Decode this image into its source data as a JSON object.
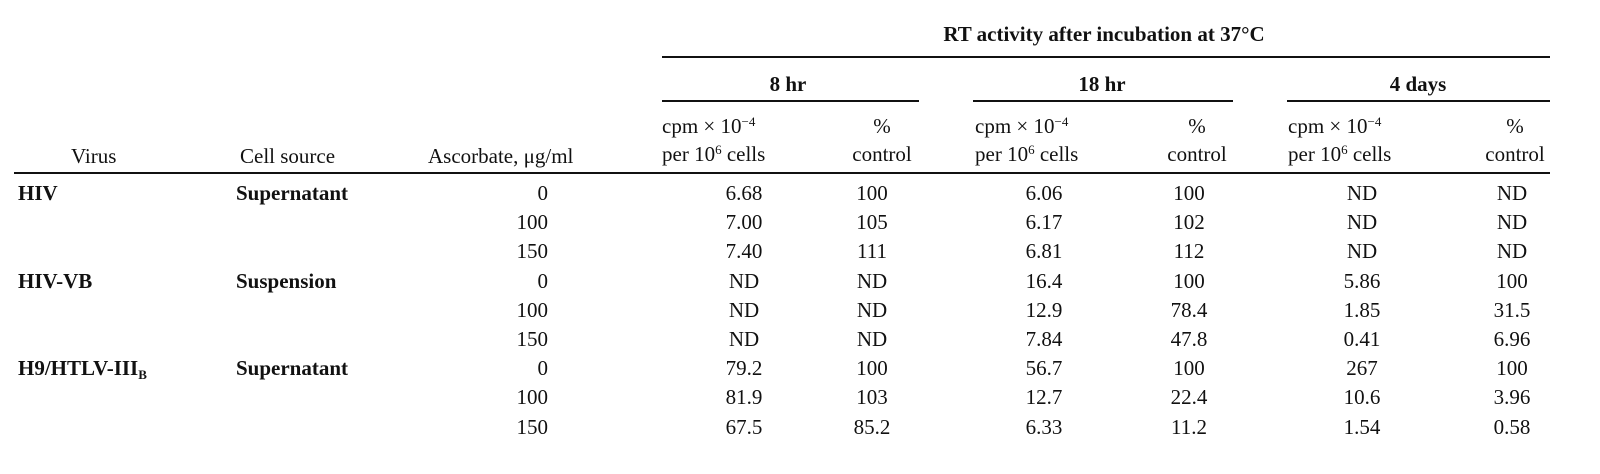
{
  "header": {
    "span_title": "RT activity after incubation at 37°C",
    "groups": [
      "8 hr",
      "18 hr",
      "4 days"
    ],
    "col_virus": "Virus",
    "col_cell_source": "Cell source",
    "col_ascorbate": "Ascorbate, μg/ml",
    "cpm_line1_prefix": "cpm × 10",
    "cpm_line1_exp": "−4",
    "cpm_line2_prefix": "per 10",
    "cpm_line2_exp": "6",
    "cpm_line2_suffix": " cells",
    "pct_line1": "%",
    "pct_line2": "control"
  },
  "rows": [
    {
      "virus": "HIV",
      "virus_sub": "",
      "cell": "Supernatant",
      "asc": "0",
      "c8": "6.68",
      "p8": "100",
      "c18": "6.06",
      "p18": "100",
      "c4": "ND",
      "p4": "ND"
    },
    {
      "virus": "",
      "virus_sub": "",
      "cell": "",
      "asc": "100",
      "c8": "7.00",
      "p8": "105",
      "c18": "6.17",
      "p18": "102",
      "c4": "ND",
      "p4": "ND"
    },
    {
      "virus": "",
      "virus_sub": "",
      "cell": "",
      "asc": "150",
      "c8": "7.40",
      "p8": "111",
      "c18": "6.81",
      "p18": "112",
      "c4": "ND",
      "p4": "ND"
    },
    {
      "virus": "HIV-VB",
      "virus_sub": "",
      "cell": "Suspension",
      "asc": "0",
      "c8": "ND",
      "p8": "ND",
      "c18": "16.4",
      "p18": "100",
      "c4": "5.86",
      "p4": "100"
    },
    {
      "virus": "",
      "virus_sub": "",
      "cell": "",
      "asc": "100",
      "c8": "ND",
      "p8": "ND",
      "c18": "12.9",
      "p18": "78.4",
      "c4": "1.85",
      "p4": "31.5"
    },
    {
      "virus": "",
      "virus_sub": "",
      "cell": "",
      "asc": "150",
      "c8": "ND",
      "p8": "ND",
      "c18": "7.84",
      "p18": "47.8",
      "c4": "0.41",
      "p4": "6.96"
    },
    {
      "virus": "H9/HTLV-III",
      "virus_sub": "B",
      "cell": "Supernatant",
      "asc": "0",
      "c8": "79.2",
      "p8": "100",
      "c18": "56.7",
      "p18": "100",
      "c4": "267",
      "p4": "100"
    },
    {
      "virus": "",
      "virus_sub": "",
      "cell": "",
      "asc": "100",
      "c8": "81.9",
      "p8": "103",
      "c18": "12.7",
      "p18": "22.4",
      "c4": "10.6",
      "p4": "3.96"
    },
    {
      "virus": "",
      "virus_sub": "",
      "cell": "",
      "asc": "150",
      "c8": "67.5",
      "p8": "85.2",
      "c18": "6.33",
      "p18": "11.2",
      "c4": "1.54",
      "p4": "0.58"
    }
  ]
}
